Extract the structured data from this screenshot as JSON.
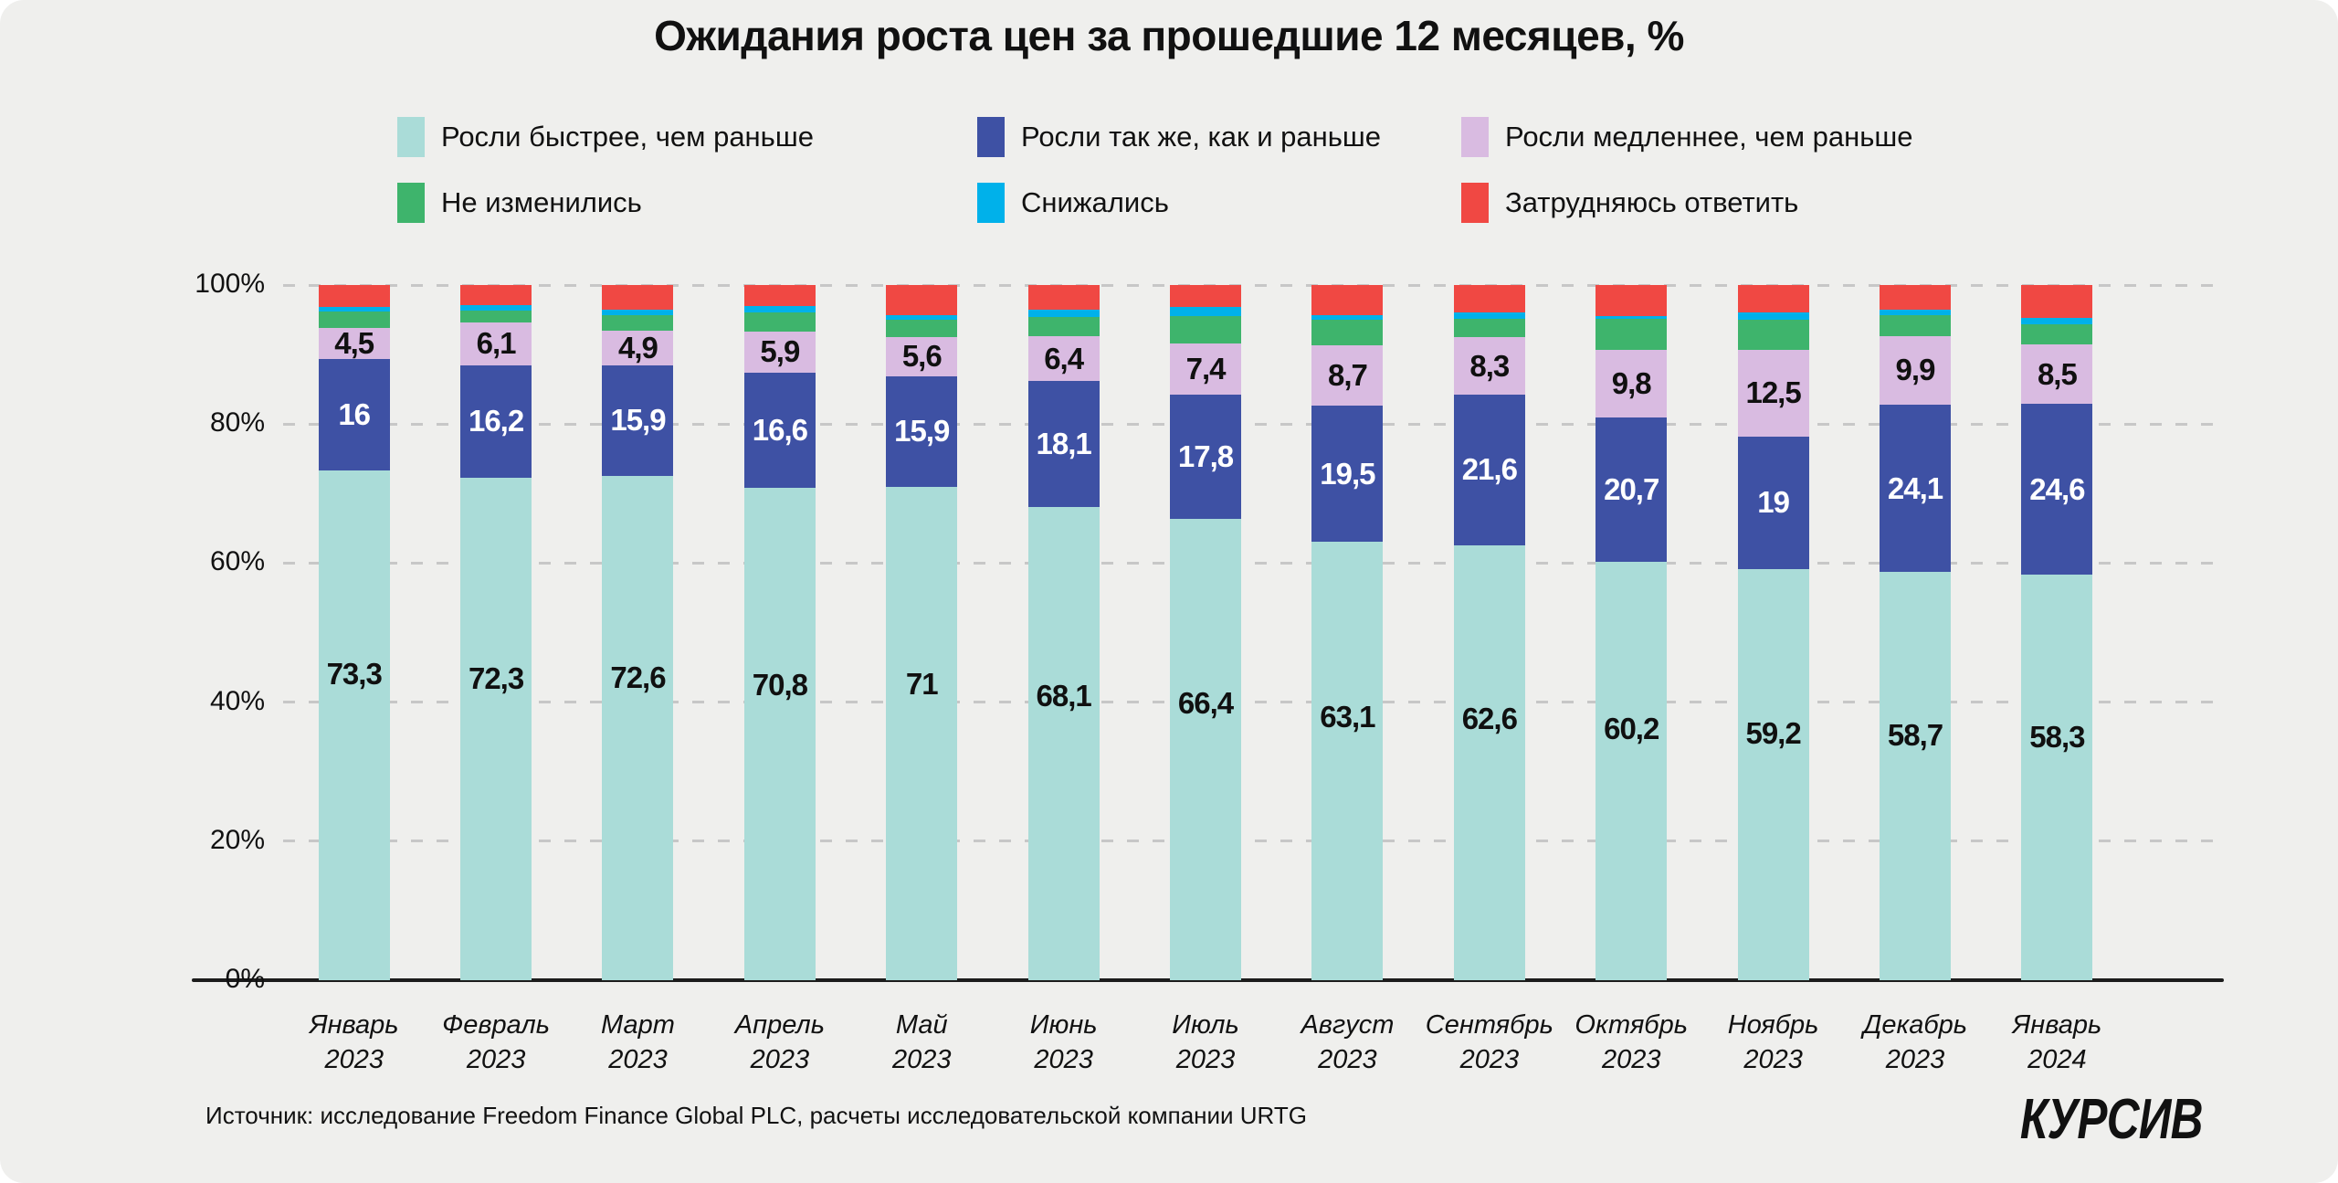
{
  "title": "Ожидания роста цен за прошедшие 12 месяцев, %",
  "source": "Источник: исследование Freedom Finance Global PLC, расчеты исследовательской компании URTG",
  "logo": "КУРСИВ",
  "colors": {
    "background": "#efefed",
    "gridline": "#c7c7c7",
    "axis": "#1c1c1c",
    "teal": "#aadcd8",
    "blue": "#3e51a4",
    "purple": "#d9bbe1",
    "green": "#3eb46c",
    "cyan": "#00b1ea",
    "red": "#f04843"
  },
  "legend": [
    {
      "label": "Росли быстрее, чем раньше",
      "color": "#aadcd8"
    },
    {
      "label": "Росли так же, как и раньше",
      "color": "#3e51a4"
    },
    {
      "label": "Росли медленнее, чем раньше",
      "color": "#d9bbe1"
    },
    {
      "label": "Не изменились",
      "color": "#3eb46c"
    },
    {
      "label": "Снижались",
      "color": "#00b1ea"
    },
    {
      "label": "Затрудняюсь ответить",
      "color": "#f04843"
    }
  ],
  "y_axis": {
    "ticks": [
      {
        "value": 100,
        "label": "100%"
      },
      {
        "value": 80,
        "label": "80%"
      },
      {
        "value": 60,
        "label": "60%"
      },
      {
        "value": 40,
        "label": "40%"
      },
      {
        "value": 20,
        "label": "20%"
      },
      {
        "value": 0,
        "label": "0%"
      }
    ]
  },
  "chart_data": {
    "type": "bar",
    "stacked": true,
    "ylim": [
      0,
      100
    ],
    "grid": "dashed horizontal",
    "legend_position": "top",
    "categories": [
      {
        "month": "Январь",
        "year": "2023"
      },
      {
        "month": "Февраль",
        "year": "2023"
      },
      {
        "month": "Март",
        "year": "2023"
      },
      {
        "month": "Апрель",
        "year": "2023"
      },
      {
        "month": "Май",
        "year": "2023"
      },
      {
        "month": "Июнь",
        "year": "2023"
      },
      {
        "month": "Июль",
        "year": "2023"
      },
      {
        "month": "Август",
        "year": "2023"
      },
      {
        "month": "Сентябрь",
        "year": "2023"
      },
      {
        "month": "Октябрь",
        "year": "2023"
      },
      {
        "month": "Ноябрь",
        "year": "2023"
      },
      {
        "month": "Декабрь",
        "year": "2023"
      },
      {
        "month": "Январь",
        "year": "2024"
      }
    ],
    "series": [
      {
        "name": "Росли быстрее, чем раньше",
        "color": "#aadcd8",
        "show_labels": true,
        "label_style": "dark-upper",
        "values": [
          73.3,
          72.3,
          72.6,
          70.8,
          71,
          68.1,
          66.4,
          63.1,
          62.6,
          60.2,
          59.2,
          58.7,
          58.3
        ]
      },
      {
        "name": "Росли так же, как и раньше",
        "color": "#3e51a4",
        "show_labels": true,
        "label_style": "light",
        "values": [
          16,
          16.2,
          15.9,
          16.6,
          15.9,
          18.1,
          17.8,
          19.5,
          21.6,
          20.7,
          19,
          24.1,
          24.6
        ]
      },
      {
        "name": "Росли медленнее, чем раньше",
        "color": "#d9bbe1",
        "show_labels": true,
        "label_style": "dark",
        "values": [
          4.5,
          6.1,
          4.9,
          5.9,
          5.6,
          6.4,
          7.4,
          8.7,
          8.3,
          9.8,
          12.5,
          9.9,
          8.5
        ]
      },
      {
        "name": "Не изменились",
        "color": "#3eb46c",
        "show_labels": false,
        "estimated": true,
        "values": [
          2.4,
          1.7,
          2.3,
          2.8,
          2.5,
          2.8,
          4.0,
          3.7,
          2.7,
          4.4,
          4.3,
          3.0,
          3.0
        ]
      },
      {
        "name": "Снижались",
        "color": "#00b1ea",
        "show_labels": false,
        "estimated": true,
        "values": [
          0.7,
          0.8,
          0.8,
          0.9,
          0.7,
          1.1,
          1.2,
          0.7,
          0.9,
          0.4,
          1.0,
          0.7,
          0.9
        ]
      },
      {
        "name": "Затрудняюсь ответить",
        "color": "#f04843",
        "show_labels": false,
        "estimated": true,
        "values": [
          3.1,
          2.9,
          3.5,
          3.0,
          4.3,
          3.5,
          3.2,
          4.3,
          3.9,
          4.5,
          4.0,
          3.6,
          4.7
        ]
      }
    ]
  }
}
